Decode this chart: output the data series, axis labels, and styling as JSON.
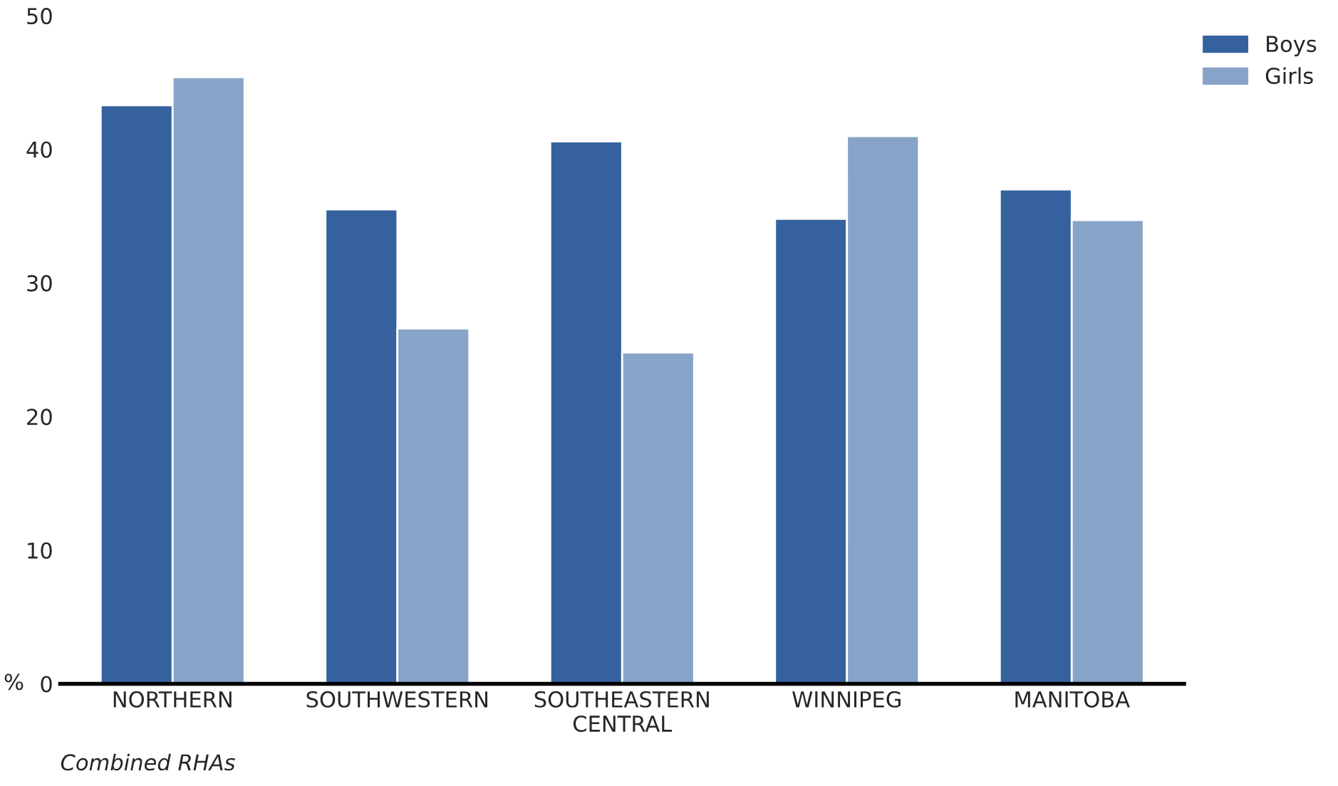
{
  "chart_data": {
    "type": "bar",
    "categories": [
      "NORTHERN",
      "SOUTHWESTERN",
      "SOUTHEASTERN\nCENTRAL",
      "WINNIPEG",
      "MANITOBA"
    ],
    "series": [
      {
        "name": "Boys",
        "color": "#35629e",
        "values": [
          43.3,
          35.5,
          40.6,
          34.8,
          37.0
        ]
      },
      {
        "name": "Girls",
        "color": "#87a3c8",
        "values": [
          45.4,
          26.6,
          24.8,
          41.0,
          34.7
        ]
      }
    ],
    "ylabel": "%",
    "ylim": [
      0,
      50
    ],
    "yticks": [
      0,
      10,
      20,
      30,
      40,
      50
    ],
    "grid": false,
    "legend": "top right",
    "annotations": [
      "Combined RHAs"
    ]
  }
}
